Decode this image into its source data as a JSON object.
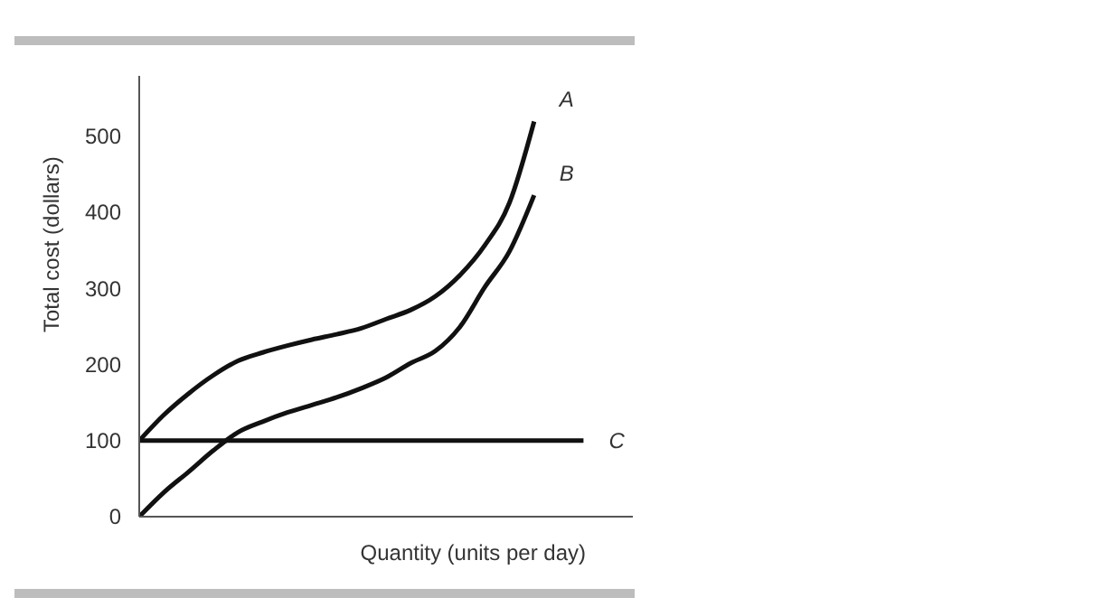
{
  "chart_data": {
    "type": "line",
    "xlabel": "Quantity (units per day)",
    "ylabel": "Total cost (dollars)",
    "categories": [
      null,
      null,
      null,
      null,
      null,
      null,
      null,
      null,
      null,
      null,
      null,
      null,
      null,
      null,
      null,
      null,
      null,
      null,
      null,
      null,
      null
    ],
    "series": [
      {
        "name": "A",
        "color": "#111111",
        "values": [
          100,
          134,
          162,
          186,
          205,
          216,
          225,
          233,
          240,
          248,
          260,
          272,
          290,
          318,
          357,
          413,
          520,
          null,
          null,
          null,
          null
        ]
      },
      {
        "name": "B",
        "color": "#111111",
        "values": [
          0,
          32,
          59,
          87,
          111,
          125,
          137,
          147,
          157,
          169,
          183,
          202,
          218,
          250,
          302,
          349,
          423,
          null,
          null,
          null,
          null
        ]
      },
      {
        "name": "C",
        "color": "#111111",
        "values": [
          100,
          100,
          100,
          100,
          100,
          100,
          100,
          100,
          100,
          100,
          100,
          100,
          100,
          100,
          100,
          100,
          100,
          100,
          100,
          null,
          null
        ]
      }
    ],
    "ylim": [
      0,
      580
    ],
    "yticks": [
      0,
      100,
      200,
      300,
      400,
      500
    ],
    "tick_labels": "y",
    "grid": false,
    "legend": false,
    "marker": "none",
    "line_style": "solid"
  }
}
